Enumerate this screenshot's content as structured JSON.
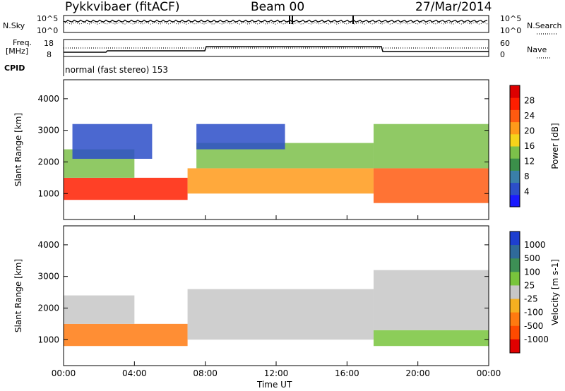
{
  "header": {
    "title": "Pykkvibaer (fitACF)",
    "beam": "Beam 00",
    "date": "27/Mar/2014"
  },
  "top_panels": {
    "nsky_label": "N.Sky",
    "nsearch_label": "N.Search",
    "freq_label_line1": "Freq.",
    "freq_label_line2": "[MHz]",
    "nave_label": "Nave",
    "cpid_label": "CPID",
    "cpid_text": "normal (fast stereo) 153",
    "noise_ticks": [
      "10^5",
      "10^0"
    ],
    "freq_ticks": [
      "18",
      "8"
    ],
    "nave_ticks": [
      "60",
      "0"
    ]
  },
  "x_axis": {
    "label": "Time UT",
    "ticks": [
      "00:00",
      "04:00",
      "08:00",
      "12:00",
      "16:00",
      "20:00",
      "00:00"
    ]
  },
  "chart_data": [
    {
      "type": "heatmap",
      "panel": "power",
      "ylabel": "Slant Range [km]",
      "ylim": [
        180,
        4600
      ],
      "yticks": [
        1000,
        2000,
        3000,
        4000
      ],
      "xlim_hours": [
        0,
        24
      ],
      "colorbar": {
        "label": "Power [dB]",
        "range": [
          0,
          32
        ],
        "ticks": [
          "4",
          "8",
          "12",
          "16",
          "20",
          "24",
          "28"
        ],
        "colors": [
          "#1a1aff",
          "#2c4ec8",
          "#3a7fa8",
          "#3b8f4a",
          "#7cc04a",
          "#f5d31b",
          "#ff9a1a",
          "#ff5a10",
          "#ff1e00",
          "#dd0000"
        ]
      },
      "bands": [
        {
          "t0": 0.0,
          "t1": 7.0,
          "r0": 800,
          "r1": 1500,
          "level": 26
        },
        {
          "t0": 0.0,
          "t1": 4.0,
          "r0": 1500,
          "r1": 2400,
          "level": 14
        },
        {
          "t0": 0.5,
          "t1": 5.0,
          "r0": 2100,
          "r1": 3200,
          "level": 6
        },
        {
          "t0": 7.0,
          "t1": 17.5,
          "r0": 1000,
          "r1": 1800,
          "level": 22
        },
        {
          "t0": 7.5,
          "t1": 17.5,
          "r0": 1800,
          "r1": 2600,
          "level": 14
        },
        {
          "t0": 7.5,
          "t1": 12.5,
          "r0": 2400,
          "r1": 3200,
          "level": 6
        },
        {
          "t0": 17.5,
          "t1": 24.0,
          "r0": 700,
          "r1": 1800,
          "level": 24
        },
        {
          "t0": 17.5,
          "t1": 24.0,
          "r0": 1800,
          "r1": 3200,
          "level": 14
        }
      ]
    },
    {
      "type": "heatmap",
      "panel": "velocity",
      "ylabel": "Slant Range [km]",
      "ylim": [
        180,
        4600
      ],
      "yticks": [
        1000,
        2000,
        3000,
        4000
      ],
      "xlim_hours": [
        0,
        24
      ],
      "colorbar": {
        "label": "Velocity [m s-1]",
        "ticks": [
          "1000",
          "500",
          "100",
          "25",
          "-25",
          "-100",
          "-500",
          "-1000"
        ],
        "colors": [
          "#1e3fd0",
          "#2f6a9a",
          "#3d8f55",
          "#78c43c",
          "#c7c7c7",
          "#f5b020",
          "#ff7a10",
          "#ff4a00",
          "#e00000"
        ]
      },
      "bands": [
        {
          "t0": 0.0,
          "t1": 7.0,
          "r0": 800,
          "r1": 1500,
          "level": -300
        },
        {
          "t0": 0.0,
          "t1": 4.0,
          "r0": 1500,
          "r1": 2400,
          "level": 0
        },
        {
          "t0": 7.0,
          "t1": 17.5,
          "r0": 1000,
          "r1": 2600,
          "level": 0
        },
        {
          "t0": 17.5,
          "t1": 24.0,
          "r0": 800,
          "r1": 1300,
          "level": 80
        },
        {
          "t0": 17.5,
          "t1": 24.0,
          "r0": 1300,
          "r1": 3200,
          "level": 0
        }
      ]
    }
  ]
}
